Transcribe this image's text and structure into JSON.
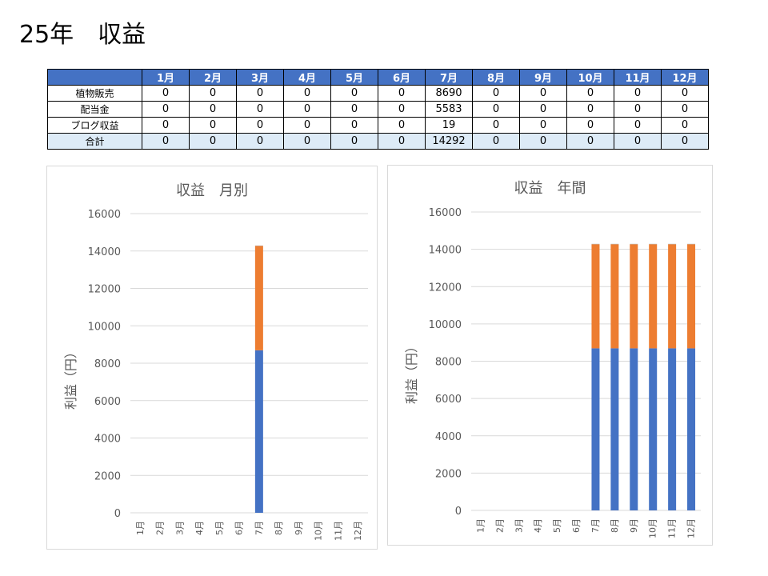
{
  "page_title": "25年　収益",
  "table": {
    "columns": [
      "",
      "1月",
      "2月",
      "3月",
      "4月",
      "5月",
      "6月",
      "7月",
      "8月",
      "9月",
      "10月",
      "11月",
      "12月"
    ],
    "rows": [
      {
        "label": "植物販売",
        "values": [
          "0",
          "0",
          "0",
          "0",
          "0",
          "0",
          "8690",
          "0",
          "0",
          "0",
          "0",
          "0"
        ]
      },
      {
        "label": "配当金",
        "values": [
          "0",
          "0",
          "0",
          "0",
          "0",
          "0",
          "5583",
          "0",
          "0",
          "0",
          "0",
          "0"
        ]
      },
      {
        "label": "ブログ収益",
        "values": [
          "0",
          "0",
          "0",
          "0",
          "0",
          "0",
          "19",
          "0",
          "0",
          "0",
          "0",
          "0"
        ]
      },
      {
        "label": "合計",
        "values": [
          "0",
          "0",
          "0",
          "0",
          "0",
          "0",
          "14292",
          "0",
          "0",
          "0",
          "0",
          "0"
        ]
      }
    ]
  },
  "colors": {
    "series1": "#4472c4",
    "series2": "#ed7d31",
    "series3": "#a5a5a5",
    "header_bg": "#4472c4",
    "total_bg": "#ddebf7",
    "grid": "#d9d9d9",
    "axis_text": "#595959"
  },
  "chart_data": [
    {
      "type": "bar",
      "stacked": true,
      "title": "収益　月別",
      "ylabel": "利益（円）",
      "xlabel": "",
      "ylim": [
        0,
        16000
      ],
      "yticks": [
        0,
        2000,
        4000,
        6000,
        8000,
        10000,
        12000,
        14000,
        16000
      ],
      "grid": true,
      "legend": "none",
      "categories": [
        "1月",
        "2月",
        "3月",
        "4月",
        "5月",
        "6月",
        "7月",
        "8月",
        "9月",
        "10月",
        "11月",
        "12月"
      ],
      "series": [
        {
          "values": [
            0,
            0,
            0,
            0,
            0,
            0,
            8690,
            0,
            0,
            0,
            0,
            0
          ]
        },
        {
          "values": [
            0,
            0,
            0,
            0,
            0,
            0,
            5583,
            0,
            0,
            0,
            0,
            0
          ]
        },
        {
          "values": [
            0,
            0,
            0,
            0,
            0,
            0,
            19,
            0,
            0,
            0,
            0,
            0
          ]
        }
      ]
    },
    {
      "type": "bar",
      "stacked": true,
      "title": "収益　年間",
      "ylabel": "利益（円）",
      "xlabel": "",
      "ylim": [
        0,
        16000
      ],
      "yticks": [
        0,
        2000,
        4000,
        6000,
        8000,
        10000,
        12000,
        14000,
        16000
      ],
      "grid": true,
      "legend": "none",
      "categories": [
        "1月",
        "2月",
        "3月",
        "4月",
        "5月",
        "6月",
        "7月",
        "8月",
        "9月",
        "10月",
        "11月",
        "12月"
      ],
      "series": [
        {
          "values": [
            0,
            0,
            0,
            0,
            0,
            0,
            8690,
            8690,
            8690,
            8690,
            8690,
            8690
          ]
        },
        {
          "values": [
            0,
            0,
            0,
            0,
            0,
            0,
            5583,
            5583,
            5583,
            5583,
            5583,
            5583
          ]
        },
        {
          "values": [
            0,
            0,
            0,
            0,
            0,
            0,
            19,
            19,
            19,
            19,
            19,
            19
          ]
        }
      ]
    }
  ]
}
